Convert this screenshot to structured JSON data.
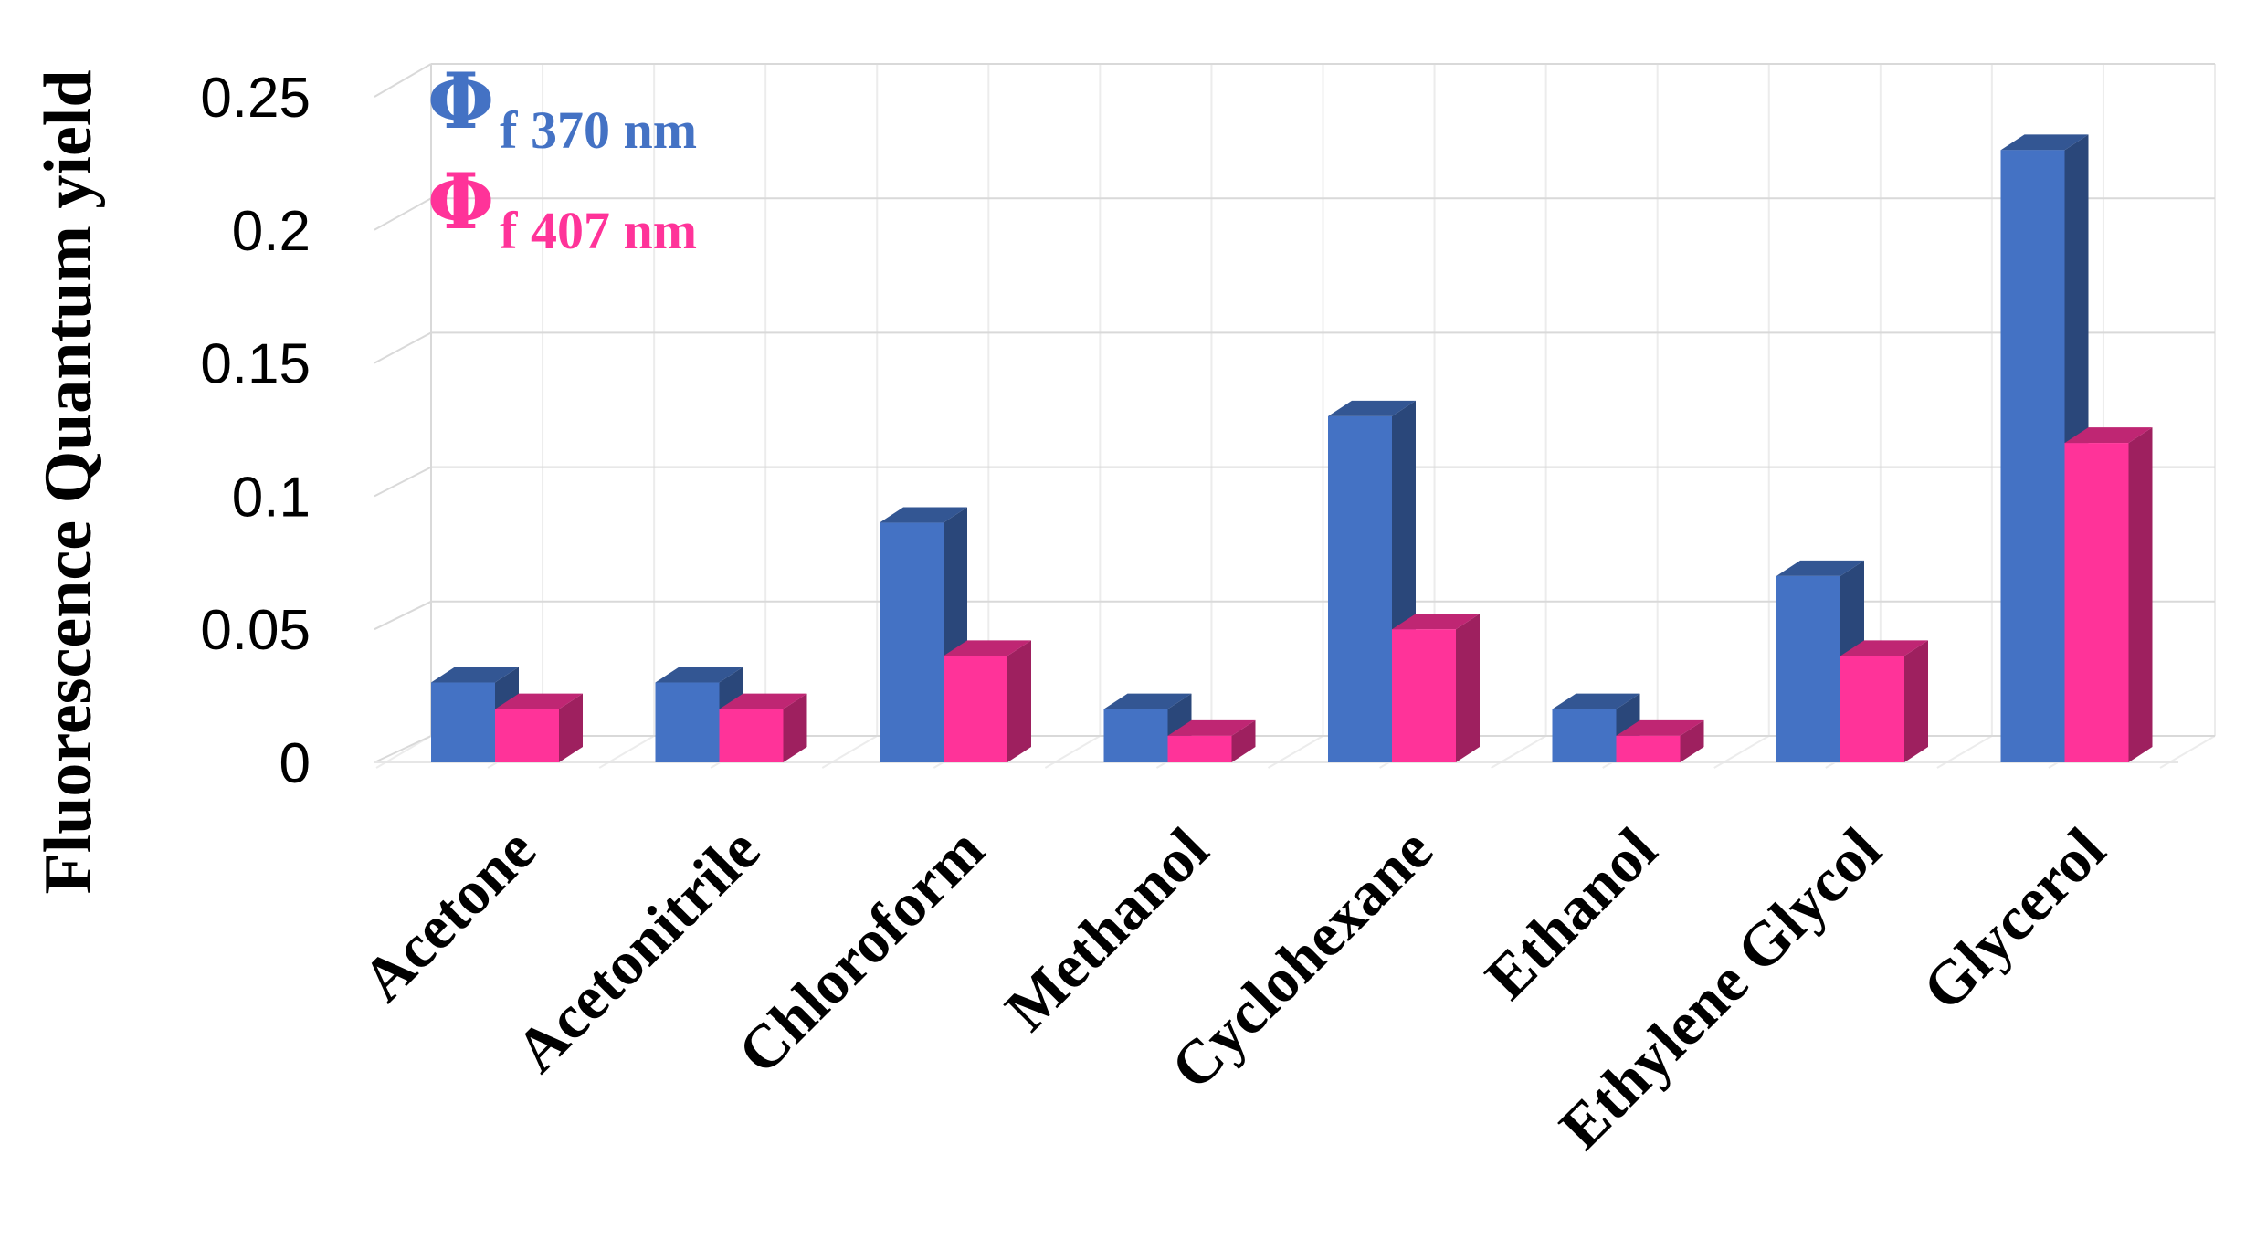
{
  "chart_data": {
    "type": "bar",
    "style": "3d-clustered",
    "title": "",
    "xlabel": "",
    "ylabel": "Fluorescence Quantum yield",
    "ylim": [
      0,
      0.25
    ],
    "yticks": [
      "0",
      "0.05",
      "0.1",
      "0.15",
      "0.2",
      "0.25"
    ],
    "grid": true,
    "legend_placement": "top-left",
    "categories": [
      "Acetone",
      "Acetonitrile",
      "Chloroform",
      "Methanol",
      "Cyclohexane",
      "Ethanol",
      "Ethylene Glycol",
      "Glycerol"
    ],
    "series": [
      {
        "symbol": "Φ",
        "subscript": "f 370 nm",
        "color": "#4472C4",
        "values": [
          0.03,
          0.03,
          0.09,
          0.02,
          0.13,
          0.02,
          0.07,
          0.23
        ]
      },
      {
        "symbol": "Φ",
        "subscript": "f 407 nm",
        "color": "#FF3399",
        "values": [
          0.02,
          0.02,
          0.04,
          0.01,
          0.05,
          0.01,
          0.04,
          0.12
        ]
      }
    ]
  }
}
